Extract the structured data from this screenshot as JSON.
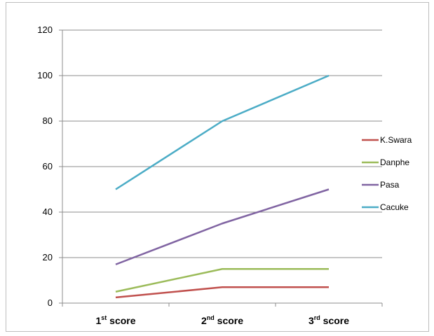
{
  "chart_data": {
    "type": "line",
    "categories": [
      {
        "label": "1st score",
        "base": "1",
        "sup": "st",
        "word": " score"
      },
      {
        "label": "2nd score",
        "base": "2",
        "sup": "nd",
        "word": " score"
      },
      {
        "label": "3rd score",
        "base": "3",
        "sup": "rd",
        "word": " score"
      }
    ],
    "ylim": [
      0,
      120
    ],
    "yticks": [
      0,
      20,
      40,
      60,
      80,
      100,
      120
    ],
    "grid": true,
    "legend_position": "right",
    "series": [
      {
        "name": "K.Swara",
        "color": "#c0504d",
        "values": [
          2.5,
          7,
          7
        ]
      },
      {
        "name": "Danphe",
        "color": "#9bbb59",
        "values": [
          5,
          15,
          15
        ]
      },
      {
        "name": "Pasa",
        "color": "#8064a2",
        "values": [
          17,
          35,
          50
        ]
      },
      {
        "name": "Cacuke",
        "color": "#4bacc6",
        "values": [
          50,
          80,
          100
        ]
      }
    ]
  }
}
